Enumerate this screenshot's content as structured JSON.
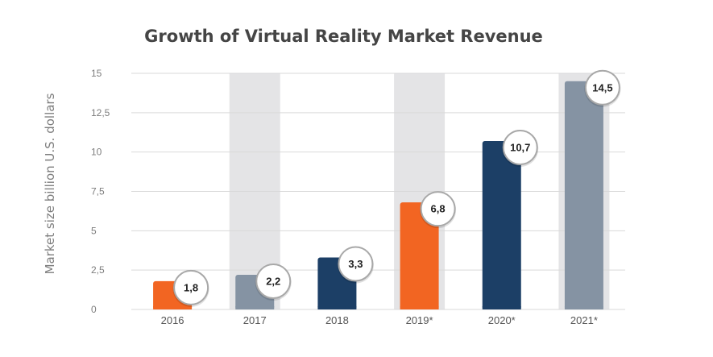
{
  "chart_data": {
    "type": "bar",
    "title": "Growth of Virtual Reality Market Revenue",
    "xlabel": "",
    "ylabel": "Market size billion U.S. dollars",
    "ylim": [
      0,
      15
    ],
    "y_ticks": [
      "0",
      "2,5",
      "5",
      "7,5",
      "10",
      "12,5",
      "15"
    ],
    "categories": [
      "2016",
      "2017",
      "2018",
      "2019*",
      "2020*",
      "2021*"
    ],
    "values": [
      1.8,
      2.2,
      3.3,
      6.8,
      10.7,
      14.5
    ],
    "value_labels": [
      "1,8",
      "2,2",
      "3,3",
      "6,8",
      "10,7",
      "14,5"
    ],
    "bar_colors": [
      "#f26522",
      "#8593a3",
      "#1c3f66",
      "#f26522",
      "#1c3f66",
      "#8593a3"
    ],
    "highlighted_columns": [
      "2017",
      "2019*",
      "2021*"
    ],
    "grid": true
  }
}
